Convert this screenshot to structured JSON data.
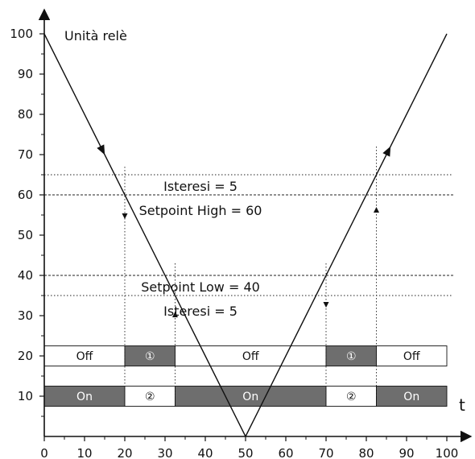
{
  "chart_data": {
    "type": "line",
    "title": "Unità relè",
    "xlabel": "t",
    "ylabel": "",
    "xlim": [
      0,
      100
    ],
    "ylim": [
      0,
      100
    ],
    "x_ticks": [
      0,
      10,
      20,
      30,
      40,
      50,
      60,
      70,
      80,
      90,
      100
    ],
    "y_ticks": [
      10,
      20,
      30,
      40,
      50,
      60,
      70,
      80,
      90,
      100
    ],
    "series": [
      {
        "x": [
          0,
          50,
          100
        ],
        "y": [
          100,
          0,
          100
        ],
        "color": "#111111"
      }
    ],
    "reference_lines": [
      {
        "y": 65,
        "style": "dotted"
      },
      {
        "y": 60,
        "style": "dashed"
      },
      {
        "y": 40,
        "style": "dashed"
      },
      {
        "y": 35,
        "style": "dotted"
      }
    ],
    "annotations": [
      {
        "text": "Isteresi = 5",
        "x": 40,
        "y": 61
      },
      {
        "text": "Setpoint High = 60",
        "x": 40,
        "y": 55
      },
      {
        "text": "Setpoint Low = 40",
        "x": 40,
        "y": 36
      },
      {
        "text": "Isteresi = 5",
        "x": 40,
        "y": 30
      }
    ],
    "switch_lines": [
      {
        "x": 20,
        "y_top": 67,
        "y_bottom": 10,
        "arrow_y": 54
      },
      {
        "x": 32.5,
        "y_top": 43,
        "y_bottom": 10,
        "arrow_y": 31
      },
      {
        "x": 70,
        "y_top": 43,
        "y_bottom": 10,
        "arrow_y": 32
      },
      {
        "x": 82.5,
        "y_top": 72,
        "y_bottom": 10,
        "arrow_y": 57
      }
    ],
    "line_arrows": [
      {
        "x": 14.5,
        "y": 71,
        "dir": "down"
      },
      {
        "x": 85.5,
        "y": 71,
        "dir": "up"
      }
    ],
    "relay_rows": [
      {
        "y": 20,
        "segments": [
          {
            "x0": 0,
            "x1": 20,
            "label": "Off",
            "state": "off"
          },
          {
            "x0": 20,
            "x1": 32.5,
            "label": "①",
            "state": "on"
          },
          {
            "x0": 32.5,
            "x1": 70,
            "label": "Off",
            "state": "off"
          },
          {
            "x0": 70,
            "x1": 82.5,
            "label": "①",
            "state": "on"
          },
          {
            "x0": 82.5,
            "x1": 100,
            "label": "Off",
            "state": "off"
          }
        ]
      },
      {
        "y": 10,
        "segments": [
          {
            "x0": 0,
            "x1": 20,
            "label": "On",
            "state": "on"
          },
          {
            "x0": 20,
            "x1": 32.5,
            "label": "②",
            "state": "off"
          },
          {
            "x0": 32.5,
            "x1": 70,
            "label": "On",
            "state": "on"
          },
          {
            "x0": 70,
            "x1": 82.5,
            "label": "②",
            "state": "off"
          },
          {
            "x0": 82.5,
            "x1": 100,
            "label": "On",
            "state": "on"
          }
        ]
      }
    ],
    "colors": {
      "line": "#111111",
      "axis": "#111111",
      "bar_on": "#6e6e6e",
      "bar_off": "#ffffff",
      "text_on_dark": "#ffffff",
      "text_on_light": "#111111"
    }
  }
}
